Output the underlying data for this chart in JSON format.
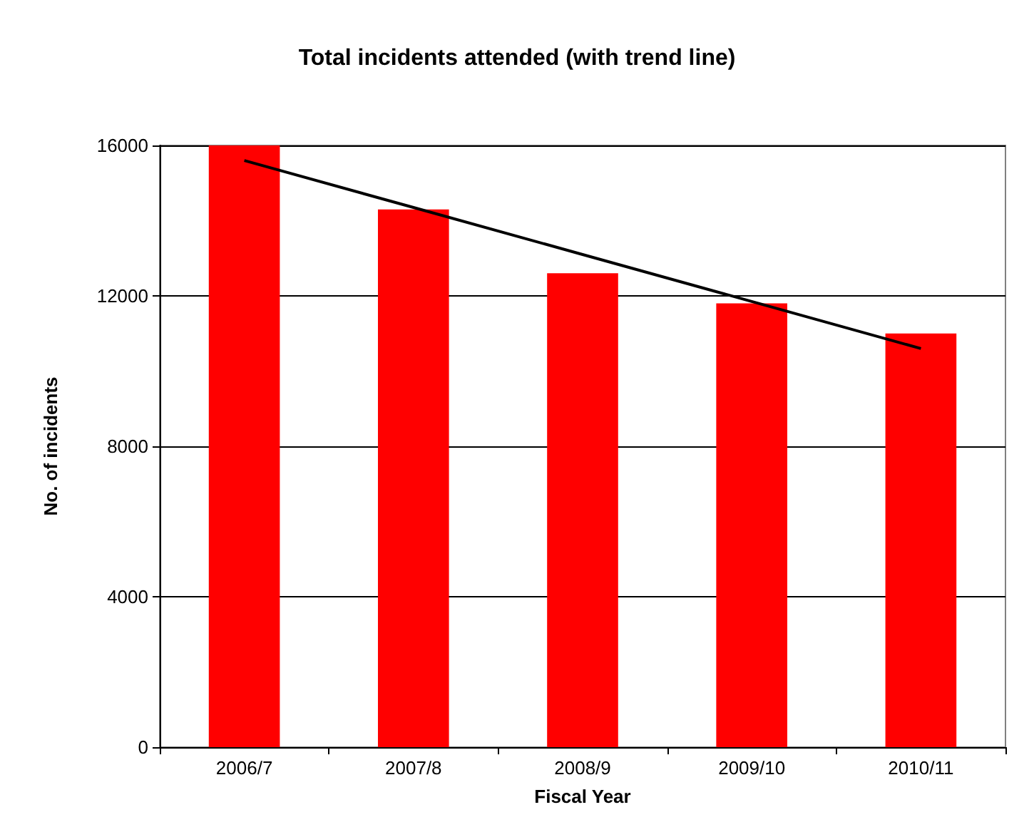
{
  "chart_data": {
    "type": "bar",
    "title": "Total incidents attended (with trend line)",
    "xlabel": "Fiscal Year",
    "ylabel": "No. of incidents",
    "categories": [
      "2006/7",
      "2007/8",
      "2008/9",
      "2009/10",
      "2010/11"
    ],
    "series": [
      {
        "color": "#ff0000",
        "values": [
          16000,
          14300,
          12600,
          11800,
          11000
        ]
      },
      {
        "type": "line",
        "color": "#000000",
        "values": [
          15600,
          14350,
          13100,
          11850,
          10600
        ]
      }
    ],
    "ylim": [
      0,
      16000
    ],
    "yticks": [
      0,
      4000,
      8000,
      12000,
      16000
    ],
    "grid": "y",
    "marker": "none",
    "line_style": "solid"
  }
}
